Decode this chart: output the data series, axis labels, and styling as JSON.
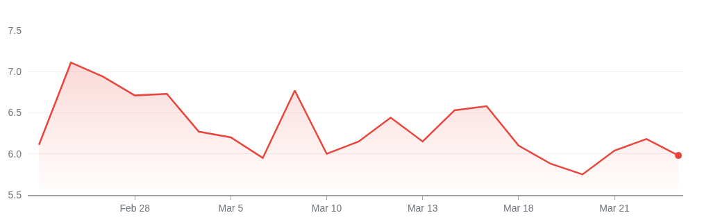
{
  "chart_data": {
    "type": "area",
    "categories": [
      null,
      null,
      null,
      "Feb 28",
      null,
      null,
      "Mar 5",
      null,
      null,
      "Mar 10",
      null,
      null,
      "Mar 13",
      null,
      null,
      "Mar 18",
      null,
      null,
      "Mar 21",
      null,
      null
    ],
    "series": [
      {
        "color": "#e8453c",
        "values": [
          6.11,
          7.11,
          6.94,
          6.71,
          6.73,
          6.27,
          6.2,
          5.95,
          6.77,
          6.0,
          6.15,
          6.44,
          6.15,
          6.53,
          6.58,
          6.1,
          5.88,
          5.75,
          6.04,
          6.18,
          5.98
        ]
      }
    ],
    "ylim": [
      5.5,
      7.5
    ],
    "yticks": [
      5.5,
      {
        "value": 6,
        "label": "6.0"
      },
      6.5,
      {
        "value": 7,
        "label": "7.0"
      },
      7.5
    ],
    "grid": "y"
  }
}
